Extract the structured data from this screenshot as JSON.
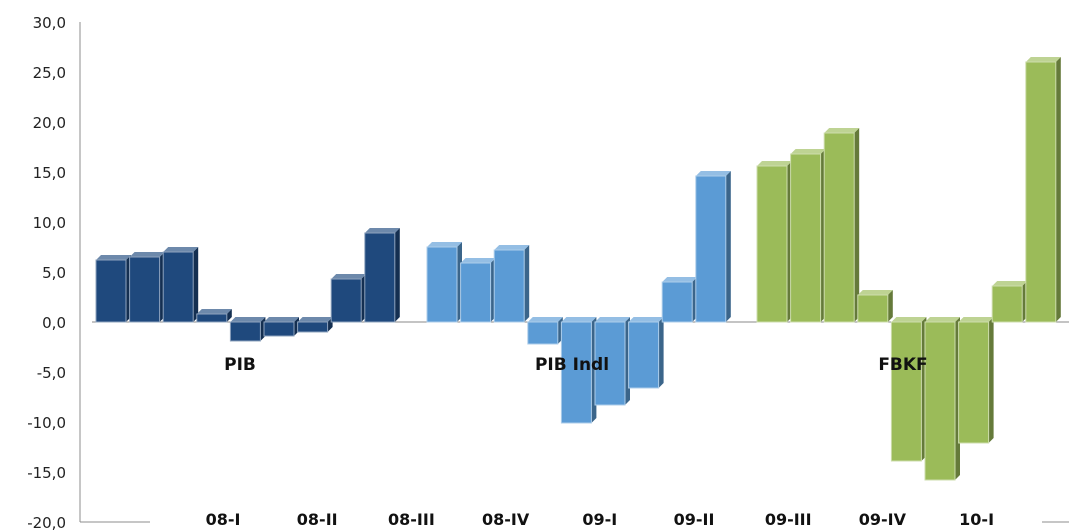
{
  "chart_data": {
    "type": "bar",
    "title": "",
    "xlabel": "",
    "ylabel": "",
    "ylim": [
      -20,
      30
    ],
    "yticks": [
      "30,0",
      "25,0",
      "20,0",
      "15,0",
      "10,0",
      "5,0",
      "0,0",
      "-5,0",
      "-10,0",
      "-15,0",
      "-20,0"
    ],
    "categories": [
      "08-I",
      "08-II",
      "08-III",
      "08-IV",
      "09-I",
      "09-II",
      "09-III",
      "09-IV",
      "10-I"
    ],
    "grid": false,
    "legend": "none",
    "style": "3d",
    "series": [
      {
        "name": "PIB",
        "color": "#1f497d",
        "values": [
          6.2,
          6.5,
          7.0,
          0.8,
          -1.9,
          -1.4,
          -1.0,
          4.3,
          8.9
        ]
      },
      {
        "name": "PIB Indl",
        "color": "#5b9bd5",
        "values": [
          7.5,
          5.9,
          7.2,
          -2.2,
          -10.1,
          -8.3,
          -6.6,
          4.0,
          14.6
        ]
      },
      {
        "name": "FBKF",
        "color": "#9bbb59",
        "values": [
          15.6,
          16.8,
          18.9,
          2.7,
          -13.9,
          -15.8,
          -12.1,
          3.6,
          26.0
        ]
      }
    ]
  }
}
